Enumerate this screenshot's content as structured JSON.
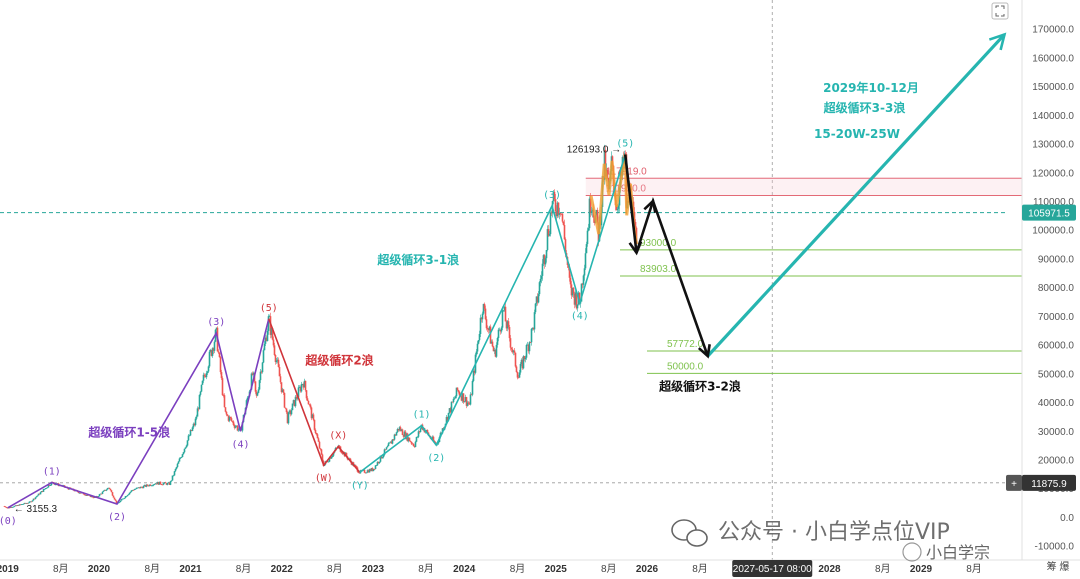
{
  "chart_data": {
    "type": "candlestick",
    "x_axis": {
      "range": [
        "2018-12-01",
        "2029-12-15"
      ],
      "ticks": [
        {
          "date": "2019-01-01",
          "label": "2019",
          "bold": true
        },
        {
          "date": "2019-08-01",
          "label": "8月"
        },
        {
          "date": "2020-01-01",
          "label": "2020",
          "bold": true
        },
        {
          "date": "2020-08-01",
          "label": "8月"
        },
        {
          "date": "2021-01-01",
          "label": "2021",
          "bold": true
        },
        {
          "date": "2021-08-01",
          "label": "8月"
        },
        {
          "date": "2022-01-01",
          "label": "2022",
          "bold": true
        },
        {
          "date": "2022-08-01",
          "label": "8月"
        },
        {
          "date": "2023-01-01",
          "label": "2023",
          "bold": true
        },
        {
          "date": "2023-08-01",
          "label": "8月"
        },
        {
          "date": "2024-01-01",
          "label": "2024",
          "bold": true
        },
        {
          "date": "2024-08-01",
          "label": "8月"
        },
        {
          "date": "2025-01-01",
          "label": "2025",
          "bold": true
        },
        {
          "date": "2025-08-01",
          "label": "8月"
        },
        {
          "date": "2026-01-01",
          "label": "2026",
          "bold": true
        },
        {
          "date": "2026-08-01",
          "label": "8月"
        },
        {
          "date": "2028-01-01",
          "label": "2028",
          "bold": true
        },
        {
          "date": "2028-08-01",
          "label": "8月"
        },
        {
          "date": "2029-01-01",
          "label": "2029",
          "bold": true
        },
        {
          "date": "2029-08-01",
          "label": "8月"
        }
      ],
      "crosshair_date": "2027-05-17",
      "crosshair_label": "2027-05-17 08:00"
    },
    "y_axis": {
      "range": [
        -15000,
        180000
      ],
      "ticks": [
        -10000,
        0,
        10000,
        20000,
        30000,
        40000,
        50000,
        60000,
        70000,
        80000,
        90000,
        100000,
        110000,
        120000,
        130000,
        140000,
        150000,
        160000,
        170000,
        180000
      ],
      "tick_labels": [
        "-10000.0",
        "0.0",
        "10000.0",
        "20000.0",
        "30000.0",
        "40000.0",
        "50000.0",
        "60000.0",
        "70000.0",
        "80000.0",
        "90000.0",
        "100000.0",
        "110000.0",
        "120000.0",
        "130000.0",
        "140000.0",
        "150000.0",
        "160000.0",
        "170000.0",
        "180000.0"
      ],
      "current_price": 105971.5,
      "current_price_label": "105971.5",
      "crosshair_price": 11875.9,
      "crosshair_price_label": "11875.9",
      "crosshair_plus": "+"
    },
    "price_path": [
      [
        "2018-12-15",
        3800
      ],
      [
        "2019-01-01",
        3155
      ],
      [
        "2019-04-01",
        5200
      ],
      [
        "2019-06-26",
        12000
      ],
      [
        "2019-09-15",
        9500
      ],
      [
        "2019-12-17",
        6600
      ],
      [
        "2020-02-10",
        10300
      ],
      [
        "2020-03-13",
        4500
      ],
      [
        "2020-05-15",
        9500
      ],
      [
        "2020-08-15",
        11800
      ],
      [
        "2020-10-10",
        11500
      ],
      [
        "2020-12-31",
        29000
      ],
      [
        "2021-01-20",
        33000
      ],
      [
        "2021-02-22",
        48000
      ],
      [
        "2021-04-14",
        64000
      ],
      [
        "2021-05-19",
        36000
      ],
      [
        "2021-07-20",
        29800
      ],
      [
        "2021-09-07",
        50000
      ],
      [
        "2021-09-21",
        41000
      ],
      [
        "2021-11-10",
        69000
      ],
      [
        "2022-01-24",
        34000
      ],
      [
        "2022-03-28",
        47500
      ],
      [
        "2022-06-18",
        18000
      ],
      [
        "2022-08-15",
        24500
      ],
      [
        "2022-11-09",
        15500
      ],
      [
        "2022-12-31",
        16500
      ],
      [
        "2023-03-15",
        26000
      ],
      [
        "2023-04-14",
        31000
      ],
      [
        "2023-06-15",
        25000
      ],
      [
        "2023-07-14",
        31800
      ],
      [
        "2023-09-11",
        25000
      ],
      [
        "2023-12-05",
        44000
      ],
      [
        "2024-01-23",
        39000
      ],
      [
        "2024-03-14",
        73800
      ],
      [
        "2024-05-01",
        56500
      ],
      [
        "2024-06-05",
        71900
      ],
      [
        "2024-08-05",
        49000
      ],
      [
        "2024-09-30",
        65000
      ],
      [
        "2024-11-12",
        89000
      ],
      [
        "2024-12-17",
        108300
      ],
      [
        "2025-01-20",
        109000
      ],
      [
        "2025-02-28",
        79000
      ],
      [
        "2025-04-07",
        74500
      ],
      [
        "2025-05-22",
        111900
      ],
      [
        "2025-06-22",
        98500
      ],
      [
        "2025-07-14",
        123000
      ],
      [
        "2025-08-02",
        112000
      ],
      [
        "2025-08-14",
        124000
      ],
      [
        "2025-09-01",
        108000
      ],
      [
        "2025-10-06",
        126193
      ],
      [
        "2025-10-12",
        105000
      ],
      [
        "2025-10-27",
        116000
      ],
      [
        "2025-11-08",
        102000
      ],
      [
        "2025-11-20",
        95000
      ]
    ],
    "series": [
      {
        "name": "超级循环1-5浪",
        "color": "#7b3fbf",
        "label_color": "#7b3fbf",
        "points": [
          [
            "2019-01-01",
            3155,
            "(0)"
          ],
          [
            "2019-06-26",
            12000,
            "(1)"
          ],
          [
            "2020-03-13",
            4500,
            "(2)"
          ],
          [
            "2021-04-14",
            64000,
            "(3)"
          ],
          [
            "2021-07-20",
            29800,
            "(4)"
          ],
          [
            "2021-11-10",
            69000,
            "(5)"
          ]
        ]
      },
      {
        "name": "超级循环2浪",
        "color": "#d0343a",
        "label_color": "#d0343a",
        "points": [
          [
            "2021-11-10",
            69000,
            "(5)"
          ],
          [
            "2022-06-18",
            18000,
            "(W)"
          ],
          [
            "2022-08-15",
            24500,
            "(X)"
          ],
          [
            "2022-11-09",
            15500,
            "(Y)"
          ]
        ]
      },
      {
        "name": "超级循环3-1浪",
        "color": "#26b5b0",
        "label_color": "#26b5b0",
        "points": [
          [
            "2022-11-09",
            15500,
            ""
          ],
          [
            "2023-07-14",
            31800,
            "(1)"
          ],
          [
            "2023-09-11",
            25000,
            "(2)"
          ],
          [
            "2024-12-17",
            108300,
            "(3)"
          ],
          [
            "2025-04-07",
            74500,
            "(4)"
          ],
          [
            "2025-10-06",
            126193,
            "(5)"
          ]
        ]
      },
      {
        "name": "超级循环3-2浪",
        "color": "#111111",
        "label_color": "#111111",
        "points": [
          [
            "2025-10-06",
            126193,
            ""
          ],
          [
            "2025-11-20",
            92000,
            ""
          ],
          [
            "2026-01-25",
            110000,
            ""
          ],
          [
            "2026-09-01",
            56000,
            ""
          ]
        ]
      },
      {
        "name": "超级循环3-3浪",
        "color": "#26b5b0",
        "label_color": "#26b5b0",
        "points": [
          [
            "2026-09-01",
            56000,
            ""
          ],
          [
            "2029-12-01",
            168000,
            ""
          ]
        ]
      }
    ],
    "wave_labels": [
      {
        "date": "2019-01-01",
        "price": 3155,
        "text": "(0)",
        "color": "#7b3fbf",
        "pos": "below"
      },
      {
        "date": "2019-06-26",
        "price": 12000,
        "text": "(1)",
        "color": "#7b3fbf",
        "pos": "above"
      },
      {
        "date": "2020-03-13",
        "price": 4500,
        "text": "(2)",
        "color": "#7b3fbf",
        "pos": "below"
      },
      {
        "date": "2021-04-14",
        "price": 64000,
        "text": "(3)",
        "color": "#7b3fbf",
        "pos": "above"
      },
      {
        "date": "2021-07-20",
        "price": 29800,
        "text": "(4)",
        "color": "#7b3fbf",
        "pos": "below"
      },
      {
        "date": "2021-11-10",
        "price": 69000,
        "text": "(5)",
        "color": "#d0343a",
        "pos": "above"
      },
      {
        "date": "2022-06-18",
        "price": 18000,
        "text": "(W)",
        "color": "#d0343a",
        "pos": "below"
      },
      {
        "date": "2022-08-15",
        "price": 24500,
        "text": "(X)",
        "color": "#d0343a",
        "pos": "above"
      },
      {
        "date": "2022-11-09",
        "price": 15500,
        "text": "(Y)",
        "color": "#26b5b0",
        "pos": "below"
      },
      {
        "date": "2023-07-14",
        "price": 31800,
        "text": "(1)",
        "color": "#26b5b0",
        "pos": "above"
      },
      {
        "date": "2023-09-11",
        "price": 25000,
        "text": "(2)",
        "color": "#26b5b0",
        "pos": "below"
      },
      {
        "date": "2024-12-17",
        "price": 108300,
        "text": "(3)",
        "color": "#26b5b0",
        "pos": "above"
      },
      {
        "date": "2025-04-07",
        "price": 74500,
        "text": "(4)",
        "color": "#26b5b0",
        "pos": "below"
      },
      {
        "date": "2025-10-06",
        "price": 126193,
        "text": "(5)",
        "color": "#26b5b0",
        "pos": "above"
      }
    ],
    "price_markers": [
      {
        "date": "2019-01-01",
        "price": 3155.3,
        "text": "← 3155.3"
      },
      {
        "date": "2025-10-06",
        "price": 126193.0,
        "text": "126193.0 →"
      }
    ],
    "levels": [
      {
        "price": 117919.0,
        "label": "117919.0",
        "color": "#e05c6a",
        "start": "2025-05-01"
      },
      {
        "price": 111920.0,
        "label": "111920.0",
        "color": "#e05c6a",
        "start": "2025-05-01"
      },
      {
        "price": 93000.0,
        "label": "93000.0",
        "color": "#7fc24e",
        "start": "2025-09-15"
      },
      {
        "price": 83903.0,
        "label": "83903.0",
        "color": "#7fc24e",
        "start": "2025-09-15"
      },
      {
        "price": 57772.0,
        "label": "57772.0",
        "color": "#7fc24e",
        "start": "2026-01-01"
      },
      {
        "price": 50000.0,
        "label": "50000.0",
        "color": "#7fc24e",
        "start": "2026-01-01"
      }
    ],
    "annotations": [
      {
        "text": "超级循环1-5浪",
        "date": "2020-05-01",
        "price": 28000,
        "color": "#7b3fbf"
      },
      {
        "text": "超级循环2浪",
        "date": "2022-08-20",
        "price": 53000,
        "color": "#d0343a"
      },
      {
        "text": "超级循环3-1浪",
        "date": "2023-07-01",
        "price": 88000,
        "color": "#26b5b0"
      },
      {
        "text": "超级循环3-2浪",
        "date": "2026-08-01",
        "price": 44000,
        "color": "#111111"
      },
      {
        "text": "2029年10-12月",
        "date": "2028-06-15",
        "price": 148000,
        "color": "#26b5b0"
      },
      {
        "text": "超级循环3-3浪",
        "date": "2028-05-20",
        "price": 141000,
        "color": "#26b5b0"
      },
      {
        "text": "15-20W-25W",
        "date": "2028-04-20",
        "price": 132000,
        "color": "#26b5b0"
      }
    ]
  },
  "watermark": {
    "text": "公众号 · 小白学点位VIP",
    "badge": "小白学宗",
    "icon": "wechat-icon"
  },
  "corner": {
    "expand_icon": "expand-icon",
    "toolbar_glyphs": "筹 爆"
  }
}
